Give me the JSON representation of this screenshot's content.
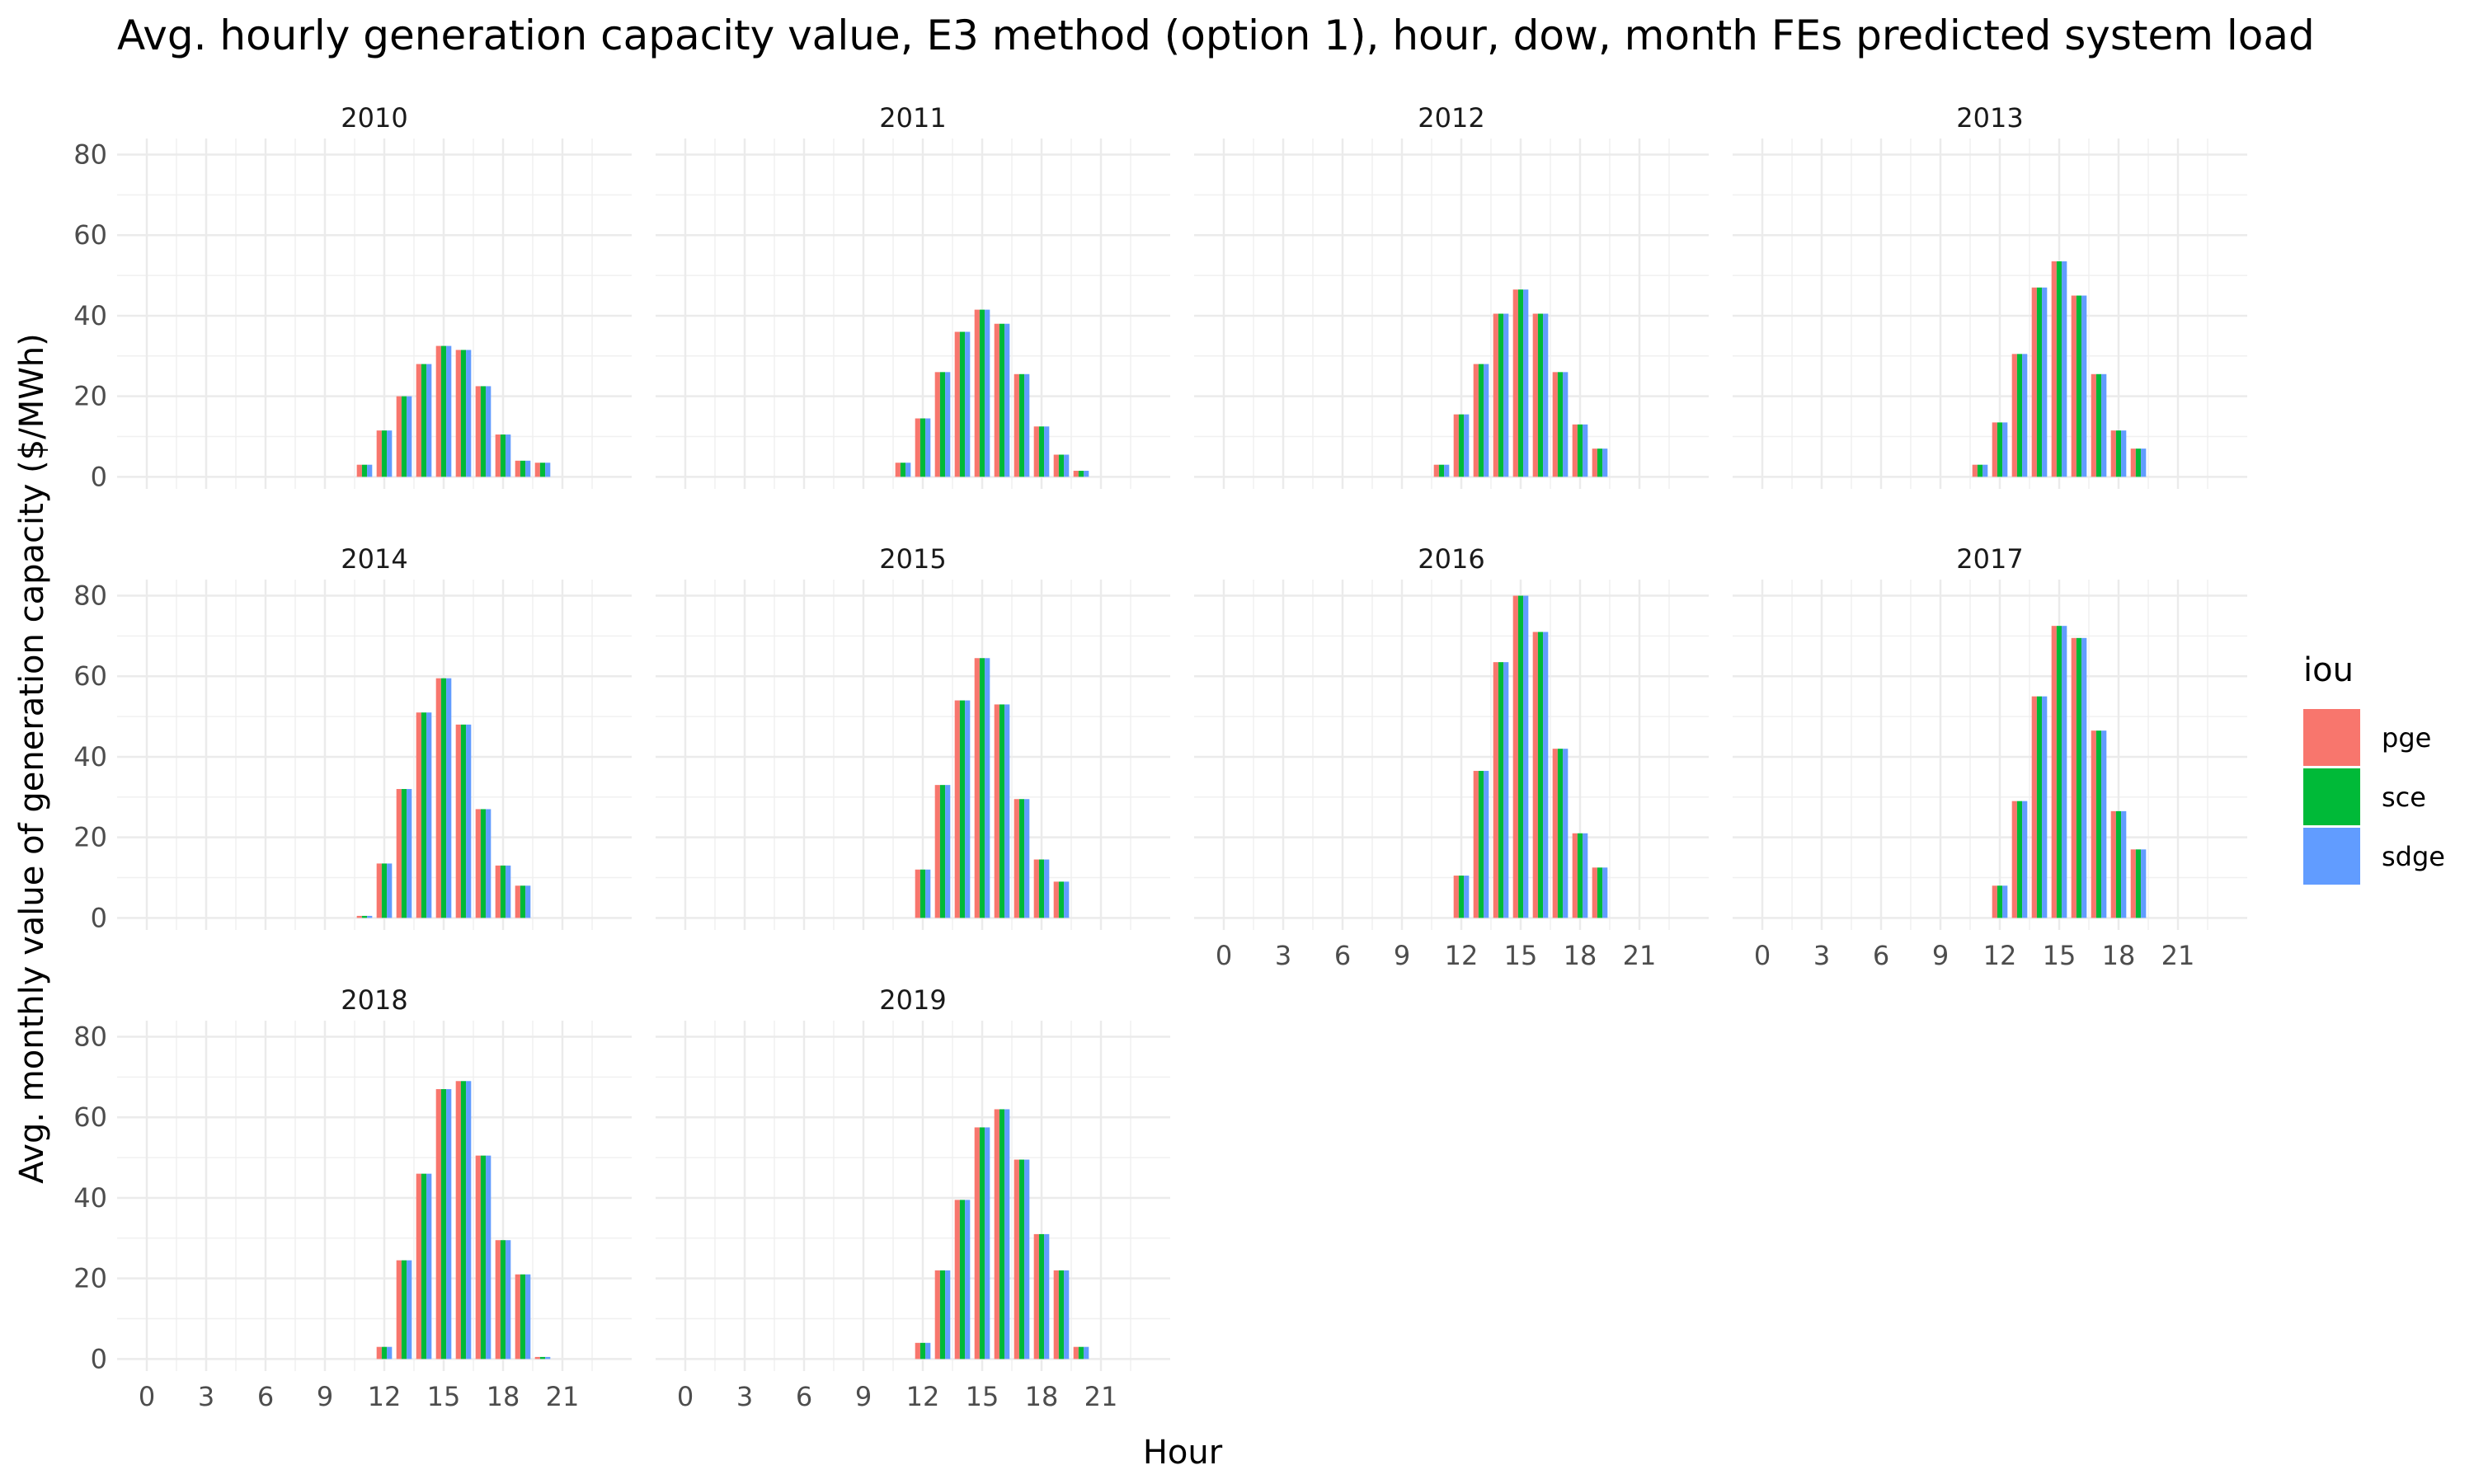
{
  "chart_data": {
    "type": "bar",
    "title": "Avg. hourly generation capacity value, E3 method (option 1), hour, dow, month FEs predicted system load",
    "xlabel": "Hour",
    "ylabel": "Avg. monthly value of generation capacity ($/MWh)",
    "xlim": [
      -1.5,
      24.5
    ],
    "ylim": [
      -3,
      84
    ],
    "x_ticks": [
      0,
      3,
      6,
      9,
      12,
      15,
      18,
      21
    ],
    "y_ticks": [
      0,
      20,
      40,
      60,
      80
    ],
    "grid": true,
    "legend": {
      "title": "iou",
      "position": "right",
      "entries": [
        {
          "name": "pge",
          "color": "#F8766D"
        },
        {
          "name": "sce",
          "color": "#00BA38"
        },
        {
          "name": "sdge",
          "color": "#619CFF"
        }
      ]
    },
    "series_names": [
      "pge",
      "sce",
      "sdge"
    ],
    "colors": [
      "#F8766D",
      "#00BA38",
      "#619CFF"
    ],
    "panels": [
      {
        "label": "2010",
        "data": [
          [
            11,
            3
          ],
          [
            12,
            11.5
          ],
          [
            13,
            20
          ],
          [
            14,
            28
          ],
          [
            15,
            32.5
          ],
          [
            16,
            31.5
          ],
          [
            17,
            22.5
          ],
          [
            18,
            10.5
          ],
          [
            19,
            4
          ],
          [
            20,
            3.5
          ]
        ]
      },
      {
        "label": "2011",
        "data": [
          [
            11,
            3.5
          ],
          [
            12,
            14.5
          ],
          [
            13,
            26
          ],
          [
            14,
            36
          ],
          [
            15,
            41.5
          ],
          [
            16,
            38
          ],
          [
            17,
            25.5
          ],
          [
            18,
            12.5
          ],
          [
            19,
            5.5
          ],
          [
            20,
            1.5
          ]
        ]
      },
      {
        "label": "2012",
        "data": [
          [
            11,
            3
          ],
          [
            12,
            15.5
          ],
          [
            13,
            28
          ],
          [
            14,
            40.5
          ],
          [
            15,
            46.5
          ],
          [
            16,
            40.5
          ],
          [
            17,
            26
          ],
          [
            18,
            13
          ],
          [
            19,
            7
          ]
        ]
      },
      {
        "label": "2013",
        "data": [
          [
            11,
            3
          ],
          [
            12,
            13.5
          ],
          [
            13,
            30.5
          ],
          [
            14,
            47
          ],
          [
            15,
            53.5
          ],
          [
            16,
            45
          ],
          [
            17,
            25.5
          ],
          [
            18,
            11.5
          ],
          [
            19,
            7
          ]
        ]
      },
      {
        "label": "2014",
        "data": [
          [
            11,
            0.5
          ],
          [
            12,
            13.5
          ],
          [
            13,
            32
          ],
          [
            14,
            51
          ],
          [
            15,
            59.5
          ],
          [
            16,
            48
          ],
          [
            17,
            27
          ],
          [
            18,
            13
          ],
          [
            19,
            8
          ]
        ]
      },
      {
        "label": "2015",
        "data": [
          [
            12,
            12
          ],
          [
            13,
            33
          ],
          [
            14,
            54
          ],
          [
            15,
            64.5
          ],
          [
            16,
            53
          ],
          [
            17,
            29.5
          ],
          [
            18,
            14.5
          ],
          [
            19,
            9
          ]
        ]
      },
      {
        "label": "2016",
        "data": [
          [
            12,
            10.5
          ],
          [
            13,
            36.5
          ],
          [
            14,
            63.5
          ],
          [
            15,
            80
          ],
          [
            16,
            71
          ],
          [
            17,
            42
          ],
          [
            18,
            21
          ],
          [
            19,
            12.5
          ]
        ]
      },
      {
        "label": "2017",
        "data": [
          [
            12,
            8
          ],
          [
            13,
            29
          ],
          [
            14,
            55
          ],
          [
            15,
            72.5
          ],
          [
            16,
            69.5
          ],
          [
            17,
            46.5
          ],
          [
            18,
            26.5
          ],
          [
            19,
            17
          ]
        ]
      },
      {
        "label": "2018",
        "data": [
          [
            12,
            3
          ],
          [
            13,
            24.5
          ],
          [
            14,
            46
          ],
          [
            15,
            67
          ],
          [
            16,
            69
          ],
          [
            17,
            50.5
          ],
          [
            18,
            29.5
          ],
          [
            19,
            21
          ],
          [
            20,
            0.5
          ]
        ]
      },
      {
        "label": "2019",
        "data": [
          [
            12,
            4
          ],
          [
            13,
            22
          ],
          [
            14,
            39.5
          ],
          [
            15,
            57.5
          ],
          [
            16,
            62
          ],
          [
            17,
            49.5
          ],
          [
            18,
            31
          ],
          [
            19,
            22
          ],
          [
            20,
            3
          ]
        ]
      }
    ]
  }
}
